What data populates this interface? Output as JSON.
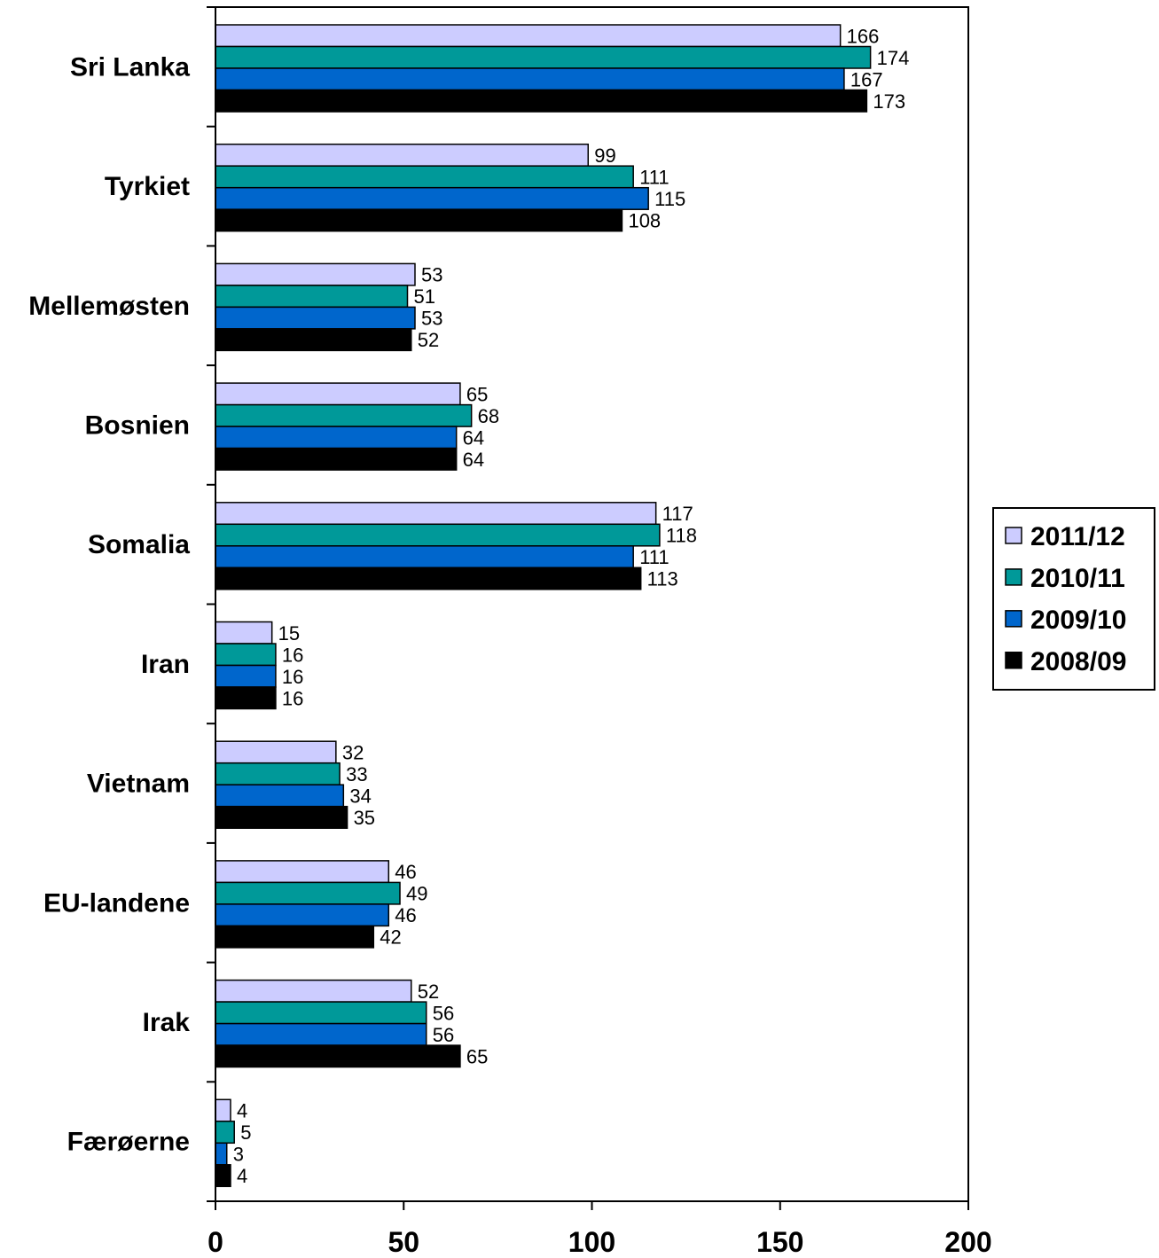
{
  "chart_data": {
    "type": "bar",
    "orientation": "horizontal",
    "categories": [
      "Sri Lanka",
      "Tyrkiet",
      "Mellemøsten",
      "Bosnien",
      "Somalia",
      "Iran",
      "Vietnam",
      "EU-landene",
      "Irak",
      "Færøerne"
    ],
    "series": [
      {
        "name": "2011/12",
        "color": "#ccccff",
        "values": [
          166,
          99,
          53,
          65,
          117,
          15,
          32,
          46,
          52,
          4
        ]
      },
      {
        "name": "2010/11",
        "color": "#009999",
        "values": [
          174,
          111,
          51,
          68,
          118,
          16,
          33,
          49,
          56,
          5
        ]
      },
      {
        "name": "2009/10",
        "color": "#0066cc",
        "values": [
          167,
          115,
          53,
          64,
          111,
          16,
          34,
          46,
          56,
          3
        ]
      },
      {
        "name": "2008/09",
        "color": "#000000",
        "values": [
          173,
          108,
          52,
          64,
          113,
          16,
          35,
          42,
          65,
          4
        ]
      }
    ],
    "xlim": [
      0,
      200
    ],
    "xticks": [
      0,
      50,
      100,
      150,
      200
    ],
    "grid": false,
    "legend_position": "right",
    "data_labels": true
  }
}
